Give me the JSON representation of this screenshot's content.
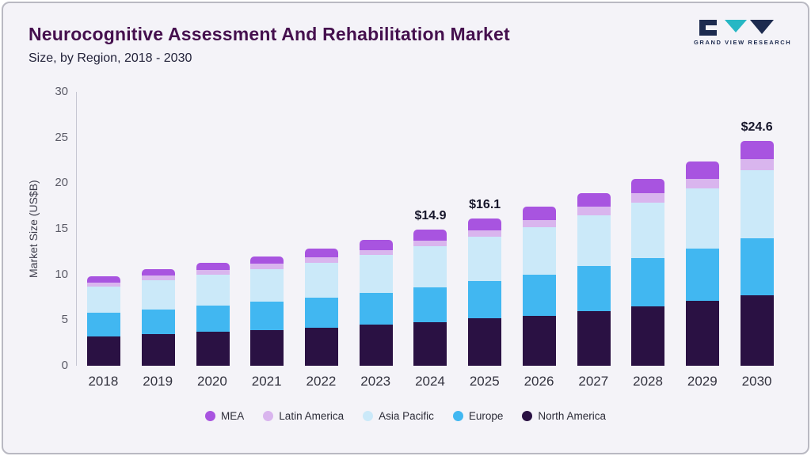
{
  "logo": {
    "text": "GRAND VIEW RESEARCH"
  },
  "chart_data": {
    "type": "bar",
    "stacked": true,
    "title": "Neurocognitive Assessment And Rehabilitation Market",
    "subtitle": "Size, by Region, 2018 - 2030",
    "xlabel": "",
    "ylabel": "Market Size (US$B)",
    "ylim": [
      0,
      30
    ],
    "yticks": [
      0,
      5,
      10,
      15,
      20,
      25,
      30
    ],
    "grid": false,
    "legend_position": "bottom",
    "categories": [
      "2018",
      "2019",
      "2020",
      "2021",
      "2022",
      "2023",
      "2024",
      "2025",
      "2026",
      "2027",
      "2028",
      "2029",
      "2030"
    ],
    "series_order": "bottom-to-top",
    "series": [
      {
        "name": "North America",
        "color": "#2a1143",
        "values": [
          3.2,
          3.5,
          3.7,
          3.9,
          4.2,
          4.5,
          4.8,
          5.2,
          5.5,
          6.0,
          6.5,
          7.1,
          7.7
        ]
      },
      {
        "name": "Europe",
        "color": "#41b7f1",
        "values": [
          2.6,
          2.7,
          2.9,
          3.1,
          3.3,
          3.5,
          3.8,
          4.1,
          4.5,
          4.9,
          5.3,
          5.7,
          6.3
        ]
      },
      {
        "name": "Asia Pacific",
        "color": "#cbe9f9",
        "values": [
          2.9,
          3.2,
          3.4,
          3.6,
          3.8,
          4.1,
          4.5,
          4.8,
          5.2,
          5.6,
          6.1,
          6.6,
          7.4
        ]
      },
      {
        "name": "Latin America",
        "color": "#d9b5ee",
        "values": [
          0.4,
          0.5,
          0.5,
          0.6,
          0.6,
          0.6,
          0.6,
          0.7,
          0.8,
          0.9,
          1.0,
          1.1,
          1.2
        ]
      },
      {
        "name": "MEA",
        "color": "#a854e0",
        "values": [
          0.7,
          0.7,
          0.8,
          0.8,
          0.9,
          1.1,
          1.2,
          1.3,
          1.4,
          1.5,
          1.6,
          1.9,
          2.0
        ]
      }
    ],
    "totals": [
      9.8,
      10.6,
      11.3,
      12.0,
      12.8,
      13.8,
      14.9,
      16.1,
      17.4,
      18.9,
      20.5,
      22.4,
      24.6
    ],
    "bar_labels": {
      "2024": "$14.9",
      "2025": "$16.1",
      "2030": "$24.6"
    },
    "legend": [
      {
        "label": "MEA",
        "color": "#a854e0"
      },
      {
        "label": "Latin America",
        "color": "#d9b5ee"
      },
      {
        "label": "Asia Pacific",
        "color": "#cbe9f9"
      },
      {
        "label": "Europe",
        "color": "#41b7f1"
      },
      {
        "label": "North America",
        "color": "#2a1143"
      }
    ]
  }
}
